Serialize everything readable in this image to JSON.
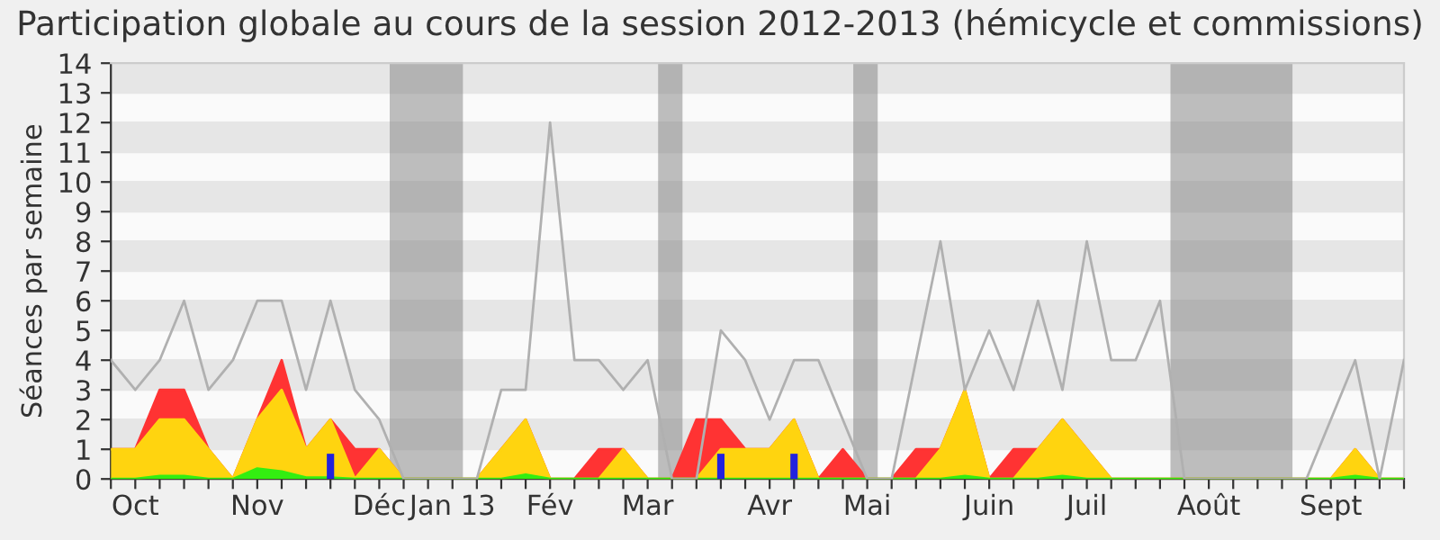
{
  "chart_data": {
    "type": "area",
    "title": "Participation globale au cours de la session 2012-2013 (hémicycle et commissions)",
    "ylabel": "Séances par semaine",
    "x": [
      "2012-09-28",
      "2012-10-05",
      "2012-10-12",
      "2012-10-19",
      "2012-10-26",
      "2012-11-02",
      "2012-11-09",
      "2012-11-16",
      "2012-11-23",
      "2012-11-30",
      "2012-12-07",
      "2012-12-14",
      "2012-12-21",
      "2012-12-28",
      "2013-01-04",
      "2013-01-11",
      "2013-01-18",
      "2013-01-25",
      "2013-02-01",
      "2013-02-08",
      "2013-02-15",
      "2013-02-22",
      "2013-03-01",
      "2013-03-08",
      "2013-03-15",
      "2013-03-22",
      "2013-03-29",
      "2013-04-05",
      "2013-04-12",
      "2013-04-19",
      "2013-04-26",
      "2013-05-03",
      "2013-05-10",
      "2013-05-17",
      "2013-05-24",
      "2013-05-31",
      "2013-06-07",
      "2013-06-14",
      "2013-06-21",
      "2013-06-28",
      "2013-07-05",
      "2013-07-12",
      "2013-07-19",
      "2013-07-26",
      "2013-08-02",
      "2013-08-09",
      "2013-08-16",
      "2013-08-23",
      "2013-08-30",
      "2013-09-06",
      "2013-09-13",
      "2013-09-20",
      "2013-09-27",
      "2013-10-04"
    ],
    "series": [
      {
        "color": "#ff3333",
        "values": [
          1,
          1,
          3,
          3,
          1,
          0,
          2,
          4,
          1,
          2,
          1,
          1,
          0,
          0,
          0,
          0,
          1,
          2,
          0,
          0,
          1,
          1,
          0,
          0,
          2,
          2,
          1,
          1,
          2,
          0,
          1,
          0,
          0,
          1,
          1,
          3,
          0,
          1,
          1,
          2,
          1,
          0,
          0,
          0,
          0,
          0,
          0,
          0,
          0,
          0,
          0,
          1,
          0,
          0
        ]
      },
      {
        "color": "#ffd40f",
        "values": [
          1,
          1,
          2,
          2,
          1,
          0,
          2,
          3,
          1,
          2,
          0,
          1,
          0,
          0,
          0,
          0,
          1,
          2,
          0,
          0,
          0,
          1,
          0,
          0,
          0,
          1,
          1,
          1,
          2,
          0,
          0,
          0,
          0,
          0,
          1,
          3,
          0,
          0,
          1,
          2,
          1,
          0,
          0,
          0,
          0,
          0,
          0,
          0,
          0,
          0,
          0,
          1,
          0,
          0
        ]
      },
      {
        "color": "#33ee11",
        "values": [
          0,
          0,
          0.1,
          0.1,
          0,
          0,
          0.35,
          0.25,
          0.05,
          0.05,
          0,
          0,
          0,
          0,
          0,
          0,
          0,
          0.15,
          0,
          0,
          0,
          0,
          0,
          0,
          0,
          0,
          0,
          0,
          0,
          0,
          0,
          0,
          0,
          0,
          0,
          0.1,
          0,
          0,
          0,
          0.1,
          0,
          0,
          0,
          0,
          0,
          0,
          0,
          0,
          0,
          0,
          0,
          0.1,
          0,
          0
        ]
      },
      {
        "type": "line",
        "color": "#b0b0b0",
        "values": [
          4,
          3,
          4,
          6,
          3,
          4,
          6,
          6,
          3,
          6,
          3,
          2,
          0,
          0,
          0,
          0,
          3,
          3,
          12,
          4,
          4,
          3,
          4,
          0,
          0,
          5,
          4,
          2,
          4,
          4,
          2,
          0,
          0,
          4,
          8,
          3,
          5,
          3,
          6,
          3,
          8,
          4,
          4,
          6,
          0,
          0,
          0,
          0,
          0,
          0,
          2,
          4,
          0,
          4
        ]
      },
      {
        "type": "bar",
        "color": "#2222dd",
        "x": [
          "2012-11-30",
          "2013-03-22",
          "2013-04-12"
        ],
        "values": [
          0.85,
          0.85,
          0.85
        ]
      }
    ],
    "xlim": [
      "2012-09-28",
      "2013-10-04"
    ],
    "ylim": [
      0,
      14
    ],
    "yticks": [
      0,
      1,
      2,
      3,
      4,
      5,
      6,
      7,
      8,
      9,
      10,
      11,
      12,
      13,
      14
    ],
    "xticks": [
      {
        "value": "2012-09-28",
        "label": null
      },
      {
        "value": "2012-10-05",
        "label": "Oct"
      },
      {
        "value": "2012-10-12",
        "label": null
      },
      {
        "value": "2012-10-19",
        "label": null
      },
      {
        "value": "2012-10-26",
        "label": null
      },
      {
        "value": "2012-11-02",
        "label": null
      },
      {
        "value": "2012-11-09",
        "label": "Nov"
      },
      {
        "value": "2012-11-16",
        "label": null
      },
      {
        "value": "2012-11-23",
        "label": null
      },
      {
        "value": "2012-11-30",
        "label": null
      },
      {
        "value": "2012-12-07",
        "label": null
      },
      {
        "value": "2012-12-14",
        "label": "Déc"
      },
      {
        "value": "2012-12-21",
        "label": null
      },
      {
        "value": "2012-12-28",
        "label": null
      },
      {
        "value": "2013-01-04",
        "label": "Jan 13"
      },
      {
        "value": "2013-01-11",
        "label": null
      },
      {
        "value": "2013-01-18",
        "label": null
      },
      {
        "value": "2013-01-25",
        "label": null
      },
      {
        "value": "2013-02-01",
        "label": "Fév"
      },
      {
        "value": "2013-02-08",
        "label": null
      },
      {
        "value": "2013-02-15",
        "label": null
      },
      {
        "value": "2013-02-22",
        "label": null
      },
      {
        "value": "2013-03-01",
        "label": "Mar"
      },
      {
        "value": "2013-03-08",
        "label": null
      },
      {
        "value": "2013-03-15",
        "label": null
      },
      {
        "value": "2013-03-22",
        "label": null
      },
      {
        "value": "2013-03-29",
        "label": null
      },
      {
        "value": "2013-04-05",
        "label": "Avr"
      },
      {
        "value": "2013-04-12",
        "label": null
      },
      {
        "value": "2013-04-19",
        "label": null
      },
      {
        "value": "2013-04-26",
        "label": null
      },
      {
        "value": "2013-05-03",
        "label": "Mai"
      },
      {
        "value": "2013-05-10",
        "label": null
      },
      {
        "value": "2013-05-17",
        "label": null
      },
      {
        "value": "2013-05-24",
        "label": null
      },
      {
        "value": "2013-05-31",
        "label": null
      },
      {
        "value": "2013-06-07",
        "label": "Juin"
      },
      {
        "value": "2013-06-14",
        "label": null
      },
      {
        "value": "2013-06-21",
        "label": null
      },
      {
        "value": "2013-06-28",
        "label": null
      },
      {
        "value": "2013-07-05",
        "label": "Juil"
      },
      {
        "value": "2013-07-12",
        "label": null
      },
      {
        "value": "2013-07-19",
        "label": null
      },
      {
        "value": "2013-07-26",
        "label": null
      },
      {
        "value": "2013-08-02",
        "label": null
      },
      {
        "value": "2013-08-09",
        "label": "Août"
      },
      {
        "value": "2013-08-16",
        "label": null
      },
      {
        "value": "2013-08-23",
        "label": null
      },
      {
        "value": "2013-08-30",
        "label": null
      },
      {
        "value": "2013-09-06",
        "label": null
      },
      {
        "value": "2013-09-13",
        "label": "Sept"
      },
      {
        "value": "2013-09-20",
        "label": null
      },
      {
        "value": "2013-09-27",
        "label": null
      },
      {
        "value": "2013-10-04",
        "label": null
      }
    ],
    "bands": [
      {
        "axis": "x",
        "from": "2012-12-17",
        "to": "2013-01-07",
        "color": "#808080"
      },
      {
        "axis": "x",
        "from": "2013-03-04",
        "to": "2013-03-11",
        "color": "#808080"
      },
      {
        "axis": "x",
        "from": "2013-04-29",
        "to": "2013-05-06",
        "color": "#808080"
      },
      {
        "axis": "x",
        "from": "2013-07-29",
        "to": "2013-09-02",
        "color": "#808080"
      }
    ],
    "grid": "y"
  }
}
